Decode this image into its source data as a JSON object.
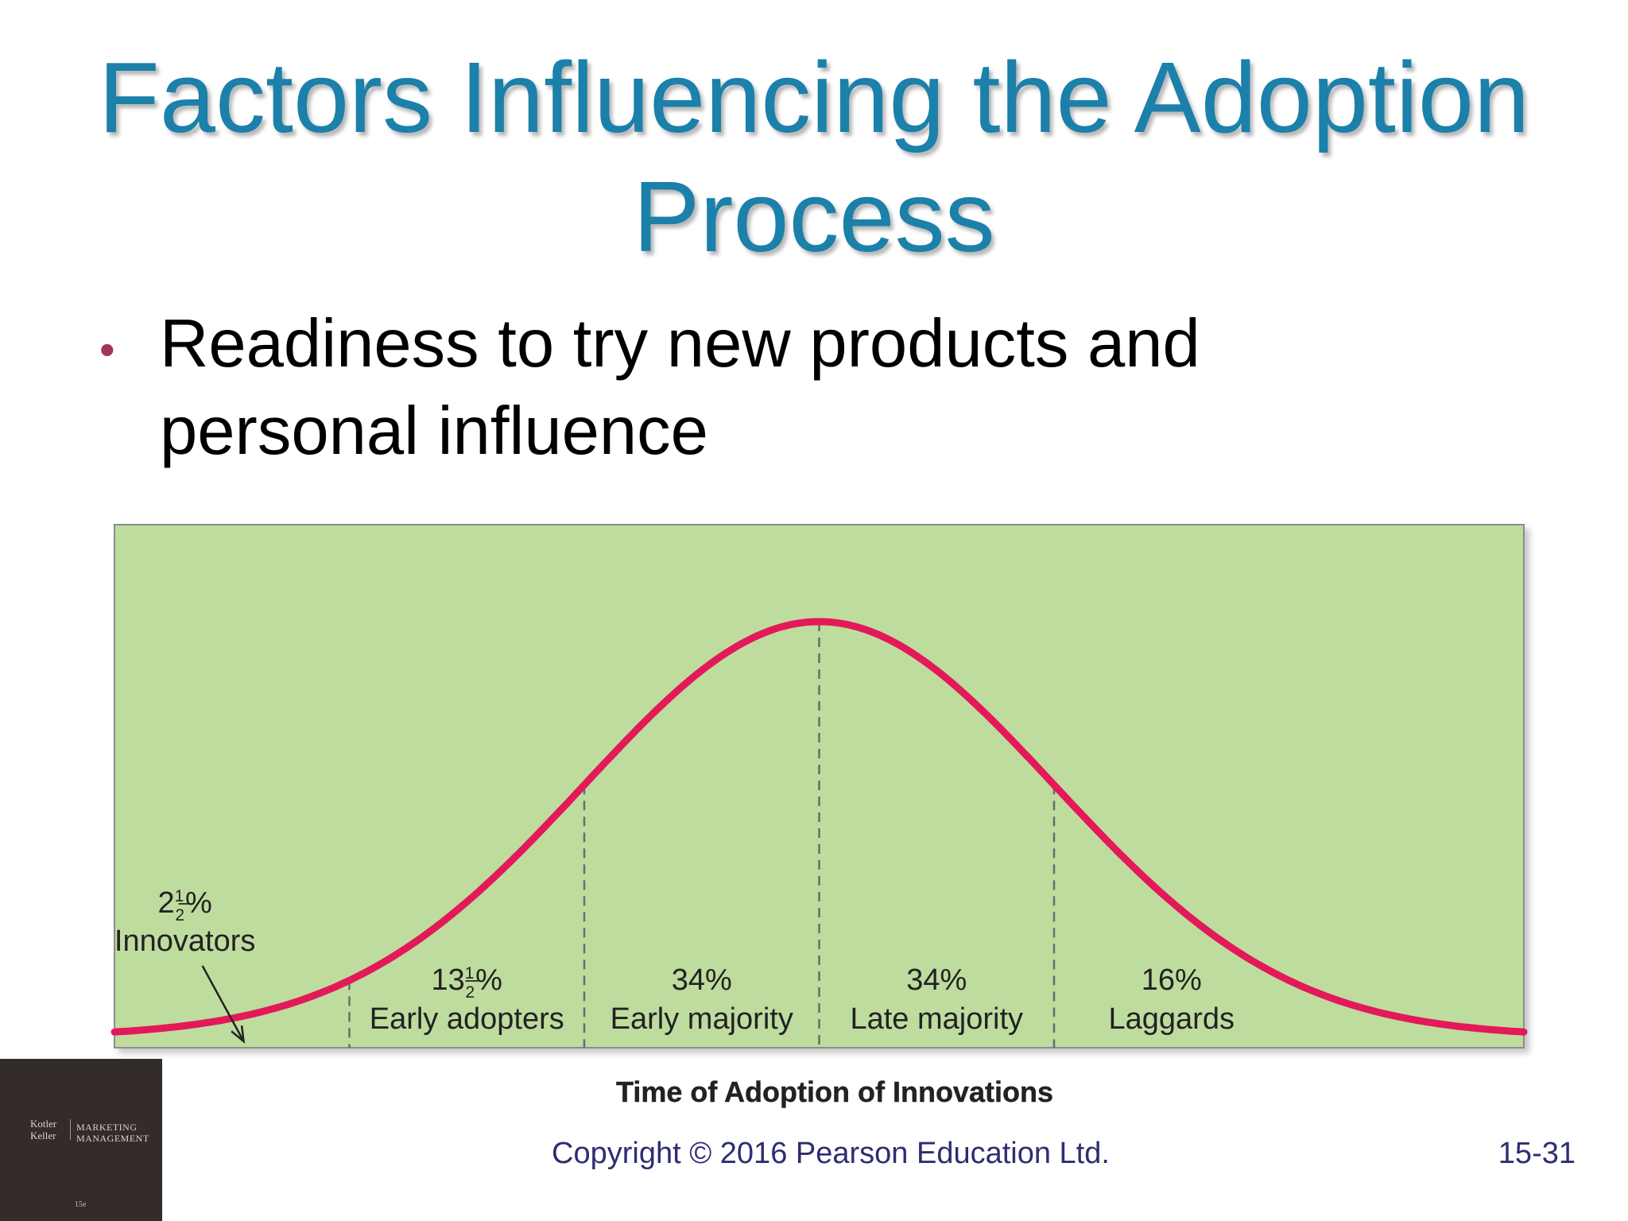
{
  "slide": {
    "title": "Factors Influencing the Adoption Process",
    "bullet": "Readiness to try new products and personal influence",
    "copyright": "Copyright © 2016 Pearson Education Ltd.",
    "slide_number": "15-31"
  },
  "logo": {
    "authors": "Kotler Keller",
    "book": "MARKETING MANAGEMENT",
    "edition": "15e"
  },
  "colors": {
    "title": "#1b80aa",
    "bullet": "#a3355c",
    "chart_background": "#bfdc9f",
    "curve": "#e3195a",
    "footer_text": "#2d2d73"
  },
  "chart_data": {
    "type": "area",
    "distribution": "normal",
    "xlabel": "Time of Adoption of Innovations",
    "grid": false,
    "x_range_sd": [
      -3,
      3
    ],
    "boundaries_sd": [
      -2,
      -1,
      0,
      1
    ],
    "segments": [
      {
        "pct_whole": "2",
        "pct_num": "1",
        "pct_den": "2",
        "pct_suffix": "%",
        "label": "Innovators",
        "share": 2.5
      },
      {
        "pct_whole": "13",
        "pct_num": "1",
        "pct_den": "2",
        "pct_suffix": "%",
        "label": "Early adopters",
        "share": 13.5
      },
      {
        "pct_whole": "34%",
        "pct_num": "",
        "pct_den": "",
        "pct_suffix": "",
        "label": "Early majority",
        "share": 34
      },
      {
        "pct_whole": "34%",
        "pct_num": "",
        "pct_den": "",
        "pct_suffix": "",
        "label": "Late majority",
        "share": 34
      },
      {
        "pct_whole": "16%",
        "pct_num": "",
        "pct_den": "",
        "pct_suffix": "",
        "label": "Laggards",
        "share": 16
      }
    ]
  }
}
